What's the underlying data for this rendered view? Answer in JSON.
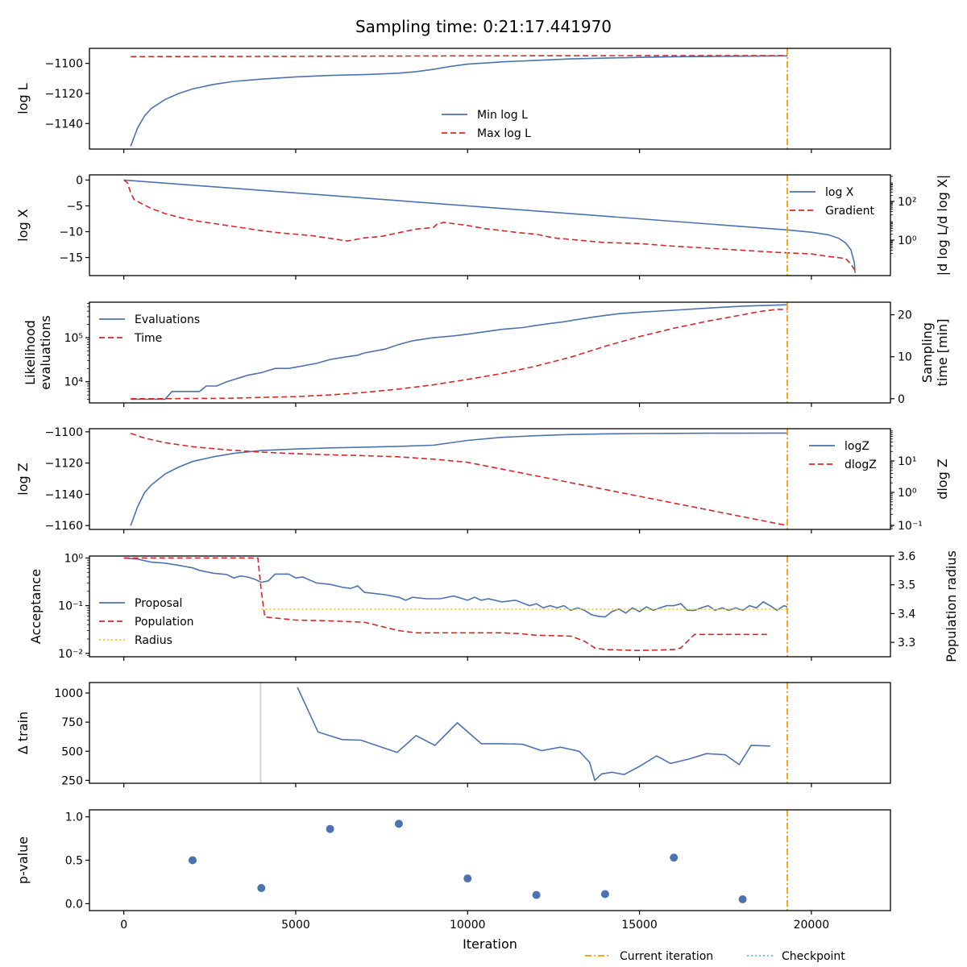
{
  "figure": {
    "title": "Sampling time: 0:21:17.441970",
    "x_axis": {
      "label": "Iteration",
      "ticks": [
        0,
        5000,
        10000,
        15000,
        20000
      ],
      "tick_labels": [
        "0",
        "5000",
        "10000",
        "15000",
        "20000"
      ],
      "range": [
        -1000,
        22300
      ]
    },
    "current_iteration": 19300,
    "colors": {
      "blue": "#4c72b0",
      "red": "#d62728",
      "orange": "#ff9900",
      "gold": "#ffcc00",
      "cyan": "#5bc0de",
      "grey": "#cccccc"
    },
    "bottom_legend": [
      "Current iteration",
      "Checkpoint"
    ]
  },
  "chart_data": [
    {
      "type": "line",
      "ylabel": "log L",
      "ylim": [
        -1157,
        -1090
      ],
      "yticks": [
        -1100,
        -1120,
        -1140
      ],
      "ytick_labels": [
        "−1100",
        "−1120",
        "−1140"
      ],
      "legend": [
        "Min log L",
        "Max log L"
      ],
      "legend_position": "bottom-center",
      "series": [
        {
          "name": "Min log L",
          "style": "solid",
          "color": "#4c72b0",
          "x": [
            200,
            400,
            600,
            800,
            1200,
            1600,
            2000,
            2600,
            3200,
            4000,
            5000,
            6000,
            7000,
            8000,
            8500,
            9000,
            9500,
            10000,
            11000,
            12000,
            13000,
            14000,
            15000,
            16000,
            17000,
            18000,
            19300
          ],
          "y": [
            -1155,
            -1143,
            -1135,
            -1130,
            -1124,
            -1120,
            -1117,
            -1114,
            -1112,
            -1110.5,
            -1109,
            -1108,
            -1107.5,
            -1106.5,
            -1105.5,
            -1104,
            -1102,
            -1100.5,
            -1099,
            -1098,
            -1097,
            -1096.5,
            -1096,
            -1095.6,
            -1095.4,
            -1095.2,
            -1095
          ]
        },
        {
          "name": "Max log L",
          "style": "dashed",
          "color": "#d62728",
          "x": [
            200,
            5000,
            10000,
            15000,
            19300
          ],
          "y": [
            -1095.5,
            -1095.3,
            -1095,
            -1094.9,
            -1094.8
          ]
        }
      ]
    },
    {
      "type": "line",
      "ylabel": "log X",
      "ylim": [
        -18.5,
        1
      ],
      "yticks": [
        0,
        -5,
        -10,
        -15
      ],
      "ytick_labels": [
        "0",
        "−5",
        "−10",
        "−15"
      ],
      "y2label": "|d log L/d log X|",
      "y2_scale": "log",
      "y2ticks": [
        100,
        1
      ],
      "y2tick_labels": [
        "10²",
        "10⁰"
      ],
      "legend": [
        "log X",
        "Gradient"
      ],
      "legend_position": "upper-right",
      "series": [
        {
          "name": "log X",
          "style": "solid",
          "color": "#4c72b0",
          "x": [
            0,
            19300,
            20000,
            20500,
            20800,
            21000,
            21150,
            21250,
            21270
          ],
          "y": [
            0,
            -9.65,
            -10.1,
            -10.6,
            -11.3,
            -12.2,
            -13.5,
            -16,
            -18
          ]
        },
        {
          "name": "Gradient",
          "style": "dashed",
          "color": "#d62728",
          "x": [
            0,
            100,
            200,
            300,
            500,
            800,
            1200,
            1600,
            2000,
            2500,
            3000,
            3500,
            4000,
            4500,
            5000,
            5500,
            6000,
            6500,
            7000,
            7500,
            8000,
            8500,
            9000,
            9100,
            9300,
            10000,
            10500,
            11000,
            11500,
            12000,
            12500,
            13000,
            13500,
            14000,
            14500,
            15000,
            16000,
            17000,
            18000,
            19000,
            20000,
            20500,
            21000,
            21150,
            21270
          ],
          "y": [
            0,
            -0.5,
            -2.5,
            -3.8,
            -4.5,
            -5.5,
            -6.5,
            -7.2,
            -7.8,
            -8.3,
            -8.8,
            -9.3,
            -9.8,
            -10.2,
            -10.5,
            -10.8,
            -11.3,
            -11.8,
            -11.2,
            -10.9,
            -10.2,
            -9.5,
            -9.2,
            -8.6,
            -8.2,
            -8.8,
            -9.4,
            -9.8,
            -10.2,
            -10.5,
            -11.2,
            -11.5,
            -11.8,
            -12.1,
            -12.2,
            -12.3,
            -12.8,
            -13.2,
            -13.6,
            -14,
            -14.3,
            -14.8,
            -15.2,
            -16.3,
            -17.5
          ]
        }
      ]
    },
    {
      "type": "line",
      "ylabel": "Likelihood evaluations",
      "y_scale": "log",
      "ylim": [
        3300,
        640000
      ],
      "yticks": [
        10000,
        100000
      ],
      "ytick_labels": [
        "10⁴",
        "10⁵"
      ],
      "y2label": "Sampling time [min]",
      "y2lim": [
        -1,
        23
      ],
      "y2ticks": [
        0,
        10,
        20
      ],
      "y2tick_labels": [
        "0",
        "10",
        "20"
      ],
      "legend": [
        "Evaluations",
        "Time"
      ],
      "legend_position": "upper-left",
      "series": [
        {
          "name": "Evaluations",
          "style": "solid",
          "color": "#4c72b0",
          "axis": "left",
          "x": [
            200,
            1200,
            1400,
            2200,
            2400,
            2700,
            3000,
            3600,
            4000,
            4400,
            4800,
            5600,
            6000,
            6400,
            6800,
            7000,
            7600,
            8000,
            8400,
            9000,
            9600,
            10000,
            10600,
            11000,
            11600,
            12000,
            12400,
            12800,
            13200,
            13600,
            14000,
            14400,
            15000,
            16000,
            17000,
            18000,
            19300
          ],
          "y": [
            4000,
            4000,
            6000,
            6000,
            8000,
            8000,
            10000,
            14000,
            16000,
            20000,
            20000,
            26000,
            32000,
            36000,
            40000,
            45000,
            55000,
            70000,
            85000,
            100000,
            110000,
            120000,
            140000,
            155000,
            170000,
            190000,
            210000,
            230000,
            260000,
            290000,
            320000,
            350000,
            380000,
            420000,
            470000,
            520000,
            560000
          ]
        },
        {
          "name": "Time",
          "style": "dashed",
          "color": "#d62728",
          "axis": "right",
          "x": [
            200,
            1000,
            2000,
            3000,
            4000,
            5000,
            6000,
            7000,
            8000,
            9000,
            10000,
            11000,
            12000,
            13000,
            14000,
            15000,
            16000,
            17000,
            18000,
            18500,
            19000,
            19300
          ],
          "y": [
            0,
            0,
            0.05,
            0.1,
            0.3,
            0.5,
            0.9,
            1.5,
            2.3,
            3.3,
            4.6,
            6,
            7.8,
            9.9,
            12.5,
            14.8,
            16.8,
            18.5,
            20,
            20.8,
            21.3,
            21.3
          ]
        }
      ]
    },
    {
      "type": "line",
      "ylabel": "log Z",
      "ylim": [
        -1162.5,
        -1098
      ],
      "yticks": [
        -1100,
        -1120,
        -1140,
        -1160
      ],
      "ytick_labels": [
        "−1100",
        "−1120",
        "−1140",
        "−1160"
      ],
      "y2label": "dlog Z",
      "y2_scale": "log",
      "y2ticks": [
        10,
        1,
        0.1
      ],
      "y2tick_labels": [
        "10¹",
        "10⁰",
        "10⁻¹"
      ],
      "legend": [
        "logZ",
        "dlogZ"
      ],
      "legend_position": "upper-right",
      "series": [
        {
          "name": "logZ",
          "style": "solid",
          "color": "#4c72b0",
          "axis": "left",
          "x": [
            200,
            400,
            600,
            800,
            1200,
            1600,
            2000,
            2600,
            3200,
            4000,
            5000,
            6000,
            7000,
            8000,
            9000,
            10000,
            11000,
            12000,
            13000,
            14000,
            15000,
            16000,
            17000,
            18000,
            19300
          ],
          "y": [
            -1160,
            -1148,
            -1139,
            -1134,
            -1127,
            -1122.5,
            -1119,
            -1116,
            -1113.8,
            -1112,
            -1111,
            -1110.3,
            -1109.8,
            -1109.3,
            -1108.6,
            -1105.5,
            -1103.5,
            -1102.5,
            -1101.7,
            -1101.3,
            -1101.1,
            -1101,
            -1100.9,
            -1100.9,
            -1100.8
          ]
        },
        {
          "name": "dlogZ",
          "style": "dashed",
          "color": "#d62728",
          "axis": "left",
          "x": [
            200,
            600,
            1200,
            2000,
            3000,
            4000,
            5000,
            6000,
            7000,
            8000,
            9000,
            10000,
            19300
          ],
          "y": [
            -1101,
            -1104,
            -1107,
            -1109.5,
            -1111.5,
            -1113,
            -1114,
            -1114.7,
            -1115.3,
            -1116,
            -1117.5,
            -1119.5,
            -1160
          ]
        }
      ]
    },
    {
      "type": "line",
      "ylabel": "Acceptance",
      "y_scale": "log",
      "ylim": [
        0.0085,
        1.1
      ],
      "yticks": [
        1,
        0.1,
        0.01
      ],
      "ytick_labels": [
        "10⁰",
        "10⁻¹",
        "10⁻²"
      ],
      "y2label": "Population radius",
      "y2lim": [
        3.25,
        3.6
      ],
      "y2ticks": [
        3.6,
        3.5,
        3.4,
        3.3
      ],
      "y2tick_labels": [
        "3.6",
        "3.5",
        "3.4",
        "3.3"
      ],
      "legend": [
        "Proposal",
        "Population",
        "Radius"
      ],
      "legend_position": "center-left",
      "series": [
        {
          "name": "Proposal",
          "style": "solid",
          "color": "#4c72b0",
          "axis": "left",
          "x": [
            0,
            400,
            800,
            1200,
            1600,
            2000,
            2200,
            2600,
            3000,
            3200,
            3400,
            3600,
            3800,
            4000,
            4200,
            4400,
            4800,
            5000,
            5200,
            5600,
            6000,
            6400,
            6600,
            6800,
            7000,
            7600,
            8000,
            8200,
            8400,
            8800,
            9200,
            9600,
            10000,
            10200,
            10400,
            10600,
            11000,
            11400,
            11800,
            12000,
            12200,
            12400,
            12600,
            12800,
            13000,
            13200,
            13400,
            13600,
            13800,
            14000,
            14200,
            14400,
            14600,
            14800,
            15000,
            15200,
            15400,
            15600,
            15800,
            16000,
            16200,
            16400,
            16600,
            16800,
            17000,
            17200,
            17400,
            17600,
            17800,
            18000,
            18200,
            18400,
            18600,
            18800,
            19000,
            19200,
            19300
          ],
          "y": [
            1,
            0.95,
            0.82,
            0.78,
            0.7,
            0.62,
            0.55,
            0.48,
            0.45,
            0.38,
            0.42,
            0.4,
            0.36,
            0.31,
            0.33,
            0.46,
            0.46,
            0.38,
            0.4,
            0.3,
            0.28,
            0.24,
            0.23,
            0.26,
            0.19,
            0.17,
            0.15,
            0.13,
            0.15,
            0.14,
            0.14,
            0.16,
            0.13,
            0.15,
            0.13,
            0.14,
            0.12,
            0.13,
            0.1,
            0.11,
            0.09,
            0.1,
            0.09,
            0.1,
            0.08,
            0.09,
            0.08,
            0.065,
            0.06,
            0.058,
            0.075,
            0.085,
            0.07,
            0.09,
            0.075,
            0.095,
            0.08,
            0.09,
            0.1,
            0.1,
            0.11,
            0.08,
            0.08,
            0.09,
            0.1,
            0.08,
            0.09,
            0.08,
            0.09,
            0.08,
            0.1,
            0.09,
            0.12,
            0.1,
            0.08,
            0.1,
            0.095
          ]
        },
        {
          "name": "Population",
          "style": "dashed",
          "color": "#d62728",
          "axis": "left",
          "x": [
            0,
            3900,
            4000,
            4100,
            5000,
            6000,
            7000,
            8000,
            8500,
            9000,
            10000,
            11000,
            11500,
            12000,
            13000,
            13400,
            13700,
            14000,
            15000,
            16000,
            16200,
            16600,
            17000,
            18000,
            18800
          ],
          "y": [
            1,
            1,
            0.2,
            0.058,
            0.05,
            0.048,
            0.045,
            0.03,
            0.027,
            0.027,
            0.027,
            0.027,
            0.026,
            0.024,
            0.023,
            0.018,
            0.013,
            0.012,
            0.0115,
            0.012,
            0.013,
            0.025,
            0.025,
            0.025,
            0.025
          ]
        },
        {
          "name": "Radius",
          "style": "dotted",
          "color": "#ffcc00",
          "axis": "right",
          "x": [
            4000,
            19300
          ],
          "y": [
            3.415,
            3.415
          ]
        }
      ]
    },
    {
      "type": "line",
      "ylabel": "Δ train",
      "ylim": [
        225,
        1090
      ],
      "yticks": [
        1000,
        750,
        500,
        250
      ],
      "ytick_labels": [
        "1000",
        "750",
        "500",
        "250"
      ],
      "checkpoint_lines": [
        3980
      ],
      "series": [
        {
          "name": "Δ train",
          "style": "solid",
          "color": "#4c72b0",
          "x": [
            5050,
            5650,
            6350,
            6900,
            7450,
            7950,
            8500,
            9050,
            9700,
            10400,
            11000,
            11600,
            12150,
            12700,
            13250,
            13550,
            13700,
            13900,
            14200,
            14550,
            15000,
            15500,
            15900,
            16400,
            16950,
            17500,
            17900,
            18250,
            18800
          ],
          "y": [
            1050,
            665,
            600,
            595,
            540,
            490,
            635,
            550,
            745,
            565,
            565,
            560,
            505,
            535,
            500,
            405,
            250,
            305,
            320,
            300,
            370,
            460,
            395,
            430,
            480,
            470,
            385,
            550,
            545
          ]
        }
      ]
    },
    {
      "type": "scatter",
      "ylabel": "p-value",
      "ylim": [
        -0.08,
        1.08
      ],
      "yticks": [
        1,
        0.5,
        0
      ],
      "ytick_labels": [
        "1.0",
        "0.5",
        "0.0"
      ],
      "series": [
        {
          "name": "p-value",
          "color": "#4c72b0",
          "x": [
            2000,
            4000,
            6000,
            8000,
            10000,
            12000,
            14000,
            16000,
            18000
          ],
          "y": [
            0.5,
            0.18,
            0.86,
            0.92,
            0.29,
            0.1,
            0.11,
            0.53,
            0.05
          ]
        }
      ]
    }
  ]
}
